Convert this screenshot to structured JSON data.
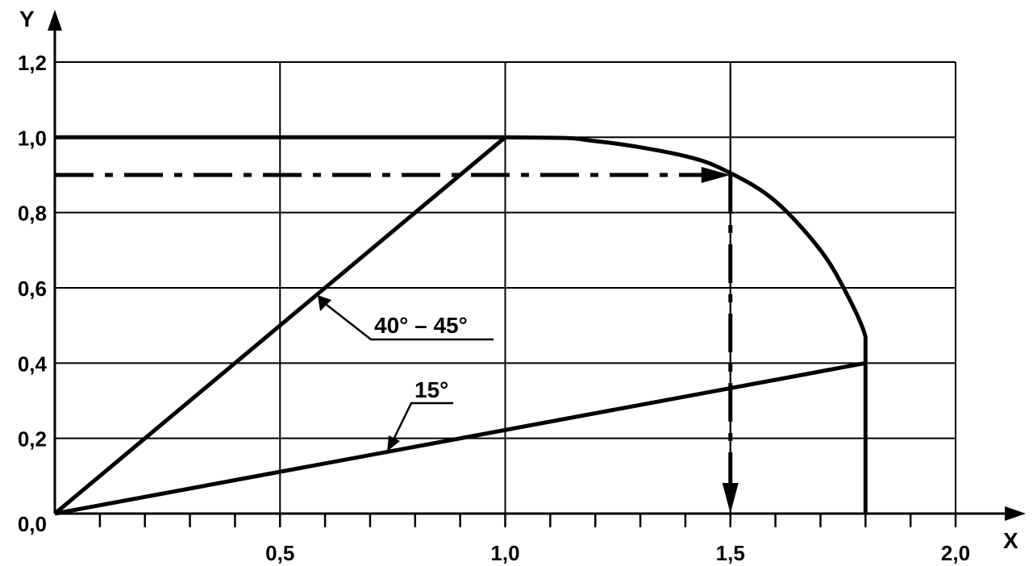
{
  "chart_data": {
    "type": "line",
    "title": "",
    "xlabel": "X",
    "ylabel": "Y",
    "xlim": [
      0,
      2.0
    ],
    "ylim": [
      0,
      1.2
    ],
    "grid": true,
    "x_ticks": [
      0.5,
      1.0,
      1.5,
      2.0
    ],
    "x_tick_labels": [
      "0,5",
      "1,0",
      "1,5",
      "2,0"
    ],
    "x_minor_step": 0.1,
    "y_ticks": [
      0,
      0.2,
      0.4,
      0.6,
      0.8,
      1.0,
      1.2
    ],
    "y_tick_labels": [
      "0,0",
      "0,2",
      "0,4",
      "0,6",
      "0,8",
      "1,0",
      "1,2"
    ],
    "series": [
      {
        "style": "solid",
        "points": [
          [
            0,
            1.0
          ],
          [
            1.0,
            1.0
          ],
          [
            1.2,
            0.99
          ],
          [
            1.4,
            0.95
          ],
          [
            1.5,
            0.905
          ],
          [
            1.6,
            0.83
          ],
          [
            1.7,
            0.7
          ],
          [
            1.76,
            0.58
          ],
          [
            1.8,
            0.47
          ],
          [
            1.8,
            0.4
          ],
          [
            1.8,
            0
          ]
        ]
      },
      {
        "label": "40° – 45°",
        "style": "solid",
        "points": [
          [
            0,
            0
          ],
          [
            1.0,
            1.0
          ]
        ]
      },
      {
        "label": "15°",
        "style": "solid",
        "points": [
          [
            0,
            0
          ],
          [
            1.8,
            0.4
          ]
        ]
      }
    ],
    "reading_path": {
      "style": "dash-dot",
      "points": [
        [
          0,
          0.9
        ],
        [
          1.5,
          0.9
        ],
        [
          1.5,
          0
        ]
      ]
    },
    "vertical_reference_x": 1.5,
    "annotations": [
      {
        "text": "40° – 45°",
        "arrow_to": [
          0.585,
          0.585
        ]
      },
      {
        "text": "15°",
        "arrow_to": [
          0.74,
          0.165
        ]
      }
    ]
  }
}
